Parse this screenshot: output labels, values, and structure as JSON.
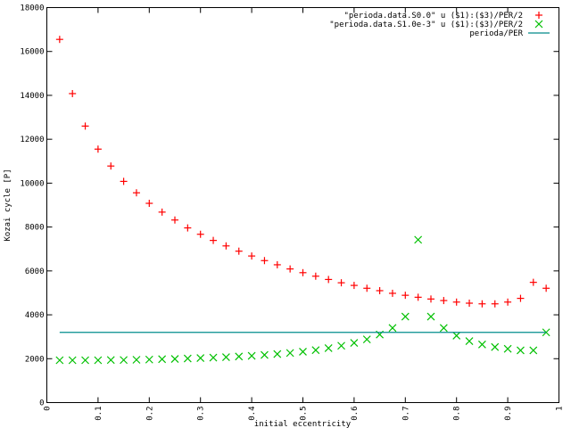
{
  "chart_data": {
    "type": "scatter",
    "title": "",
    "xlabel": "initial eccentricity",
    "ylabel": "Kozai cycle [P]",
    "xlim": [
      0,
      1
    ],
    "ylim": [
      0,
      18000
    ],
    "grid": false,
    "legend_position": "top-right",
    "xticks": [
      {
        "value": 0,
        "label": "0"
      },
      {
        "value": 0.1,
        "label": "0.1"
      },
      {
        "value": 0.2,
        "label": "0.2"
      },
      {
        "value": 0.3,
        "label": "0.3"
      },
      {
        "value": 0.4,
        "label": "0.4"
      },
      {
        "value": 0.5,
        "label": "0.5"
      },
      {
        "value": 0.6,
        "label": "0.6"
      },
      {
        "value": 0.7,
        "label": "0.7"
      },
      {
        "value": 0.8,
        "label": "0.8"
      },
      {
        "value": 0.9,
        "label": "0.9"
      },
      {
        "value": 1,
        "label": "1"
      }
    ],
    "yticks": [
      {
        "value": 0,
        "label": "0"
      },
      {
        "value": 2000,
        "label": "2000"
      },
      {
        "value": 4000,
        "label": "4000"
      },
      {
        "value": 6000,
        "label": "6000"
      },
      {
        "value": 8000,
        "label": "8000"
      },
      {
        "value": 10000,
        "label": "10000"
      },
      {
        "value": 12000,
        "label": "12000"
      },
      {
        "value": 14000,
        "label": "14000"
      },
      {
        "value": 16000,
        "label": "16000"
      },
      {
        "value": 18000,
        "label": "18000"
      }
    ],
    "series": [
      {
        "name": "\"perioda.data.S0.0\" u ($1):($3)/PER/2",
        "marker": "plus",
        "color": "#ff0000",
        "x": [
          0.025,
          0.05,
          0.075,
          0.1,
          0.125,
          0.15,
          0.175,
          0.2,
          0.225,
          0.25,
          0.275,
          0.3,
          0.325,
          0.35,
          0.375,
          0.4,
          0.425,
          0.45,
          0.475,
          0.5,
          0.525,
          0.55,
          0.575,
          0.6,
          0.625,
          0.65,
          0.675,
          0.7,
          0.725,
          0.75,
          0.775,
          0.8,
          0.825,
          0.85,
          0.875,
          0.9,
          0.925,
          0.95,
          0.975
        ],
        "y": [
          16550,
          14080,
          12600,
          11550,
          10780,
          10080,
          9560,
          9080,
          8680,
          8320,
          7960,
          7670,
          7390,
          7140,
          6900,
          6680,
          6470,
          6280,
          6090,
          5920,
          5760,
          5610,
          5460,
          5340,
          5210,
          5100,
          4980,
          4890,
          4800,
          4720,
          4650,
          4580,
          4530,
          4500,
          4500,
          4580,
          4750,
          5480,
          5210
        ]
      },
      {
        "name": "\"perioda.data.S1.0e-3\" u ($1):($3)/PER/2",
        "marker": "cross",
        "color": "#00c000",
        "x": [
          0.025,
          0.05,
          0.075,
          0.1,
          0.125,
          0.15,
          0.175,
          0.2,
          0.225,
          0.25,
          0.275,
          0.3,
          0.325,
          0.35,
          0.375,
          0.4,
          0.425,
          0.45,
          0.475,
          0.5,
          0.525,
          0.55,
          0.575,
          0.6,
          0.625,
          0.65,
          0.675,
          0.7,
          0.725,
          0.75,
          0.775,
          0.8,
          0.825,
          0.85,
          0.875,
          0.9,
          0.925,
          0.95,
          0.975
        ],
        "y": [
          1930,
          1930,
          1930,
          1930,
          1940,
          1940,
          1950,
          1960,
          1980,
          1990,
          2010,
          2030,
          2050,
          2070,
          2100,
          2130,
          2170,
          2210,
          2260,
          2320,
          2390,
          2480,
          2590,
          2720,
          2880,
          3100,
          3400,
          3920,
          7420,
          3920,
          3400,
          3050,
          2800,
          2650,
          2530,
          2450,
          2380,
          2380,
          3200
        ]
      },
      {
        "name": "perioda/PER",
        "marker": "line",
        "color": "#008b8b",
        "x": [
          0.025,
          0.975
        ],
        "y": [
          3200,
          3200
        ]
      }
    ]
  }
}
